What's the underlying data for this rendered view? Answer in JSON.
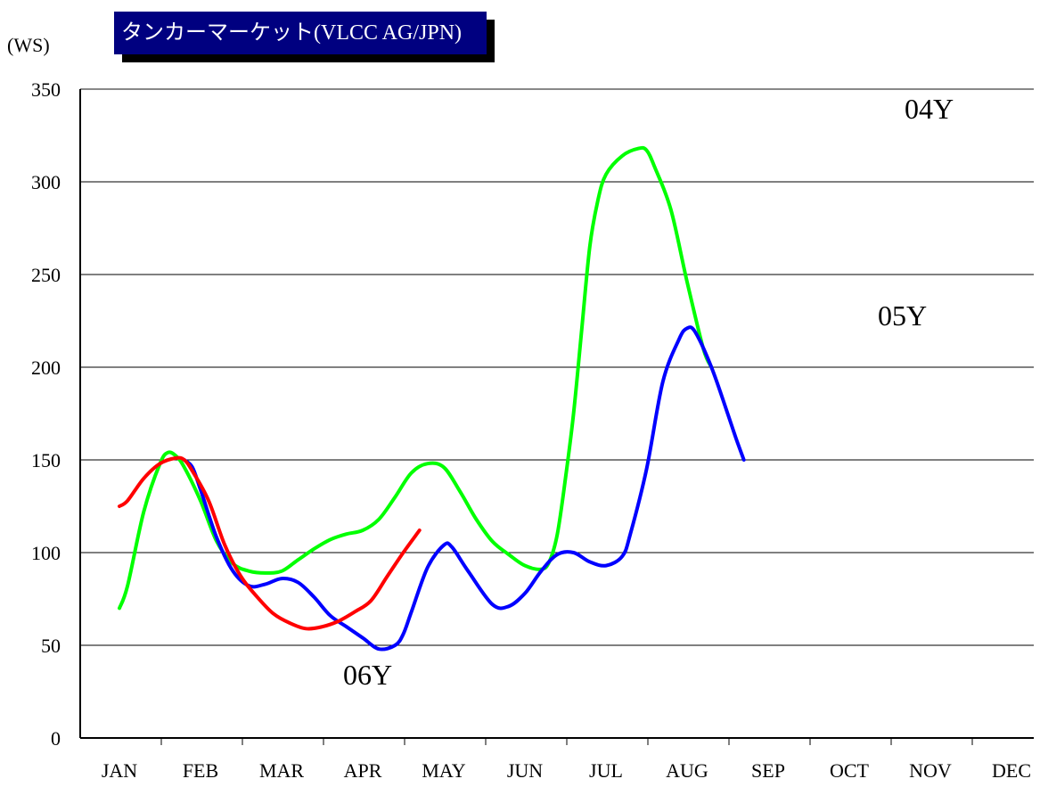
{
  "chart_data": {
    "type": "line",
    "title": "タンカーマーケット(VLCC AG/JPN)",
    "ylabel": "(WS)",
    "xlabel": "",
    "ylim": [
      0,
      350
    ],
    "yticks": [
      0,
      50,
      100,
      150,
      200,
      250,
      300,
      350
    ],
    "categories": [
      "JAN",
      "FEB",
      "MAR",
      "APR",
      "MAY",
      "JUN",
      "JUL",
      "AUG",
      "SEP",
      "OCT",
      "NOV",
      "DEC"
    ],
    "grid": "horizontal",
    "series": [
      {
        "name": "04Y",
        "color": "#00ff00",
        "points": [
          [
            0.0,
            70
          ],
          [
            0.1,
            82
          ],
          [
            0.3,
            122
          ],
          [
            0.5,
            148
          ],
          [
            0.6,
            154
          ],
          [
            0.7,
            152
          ],
          [
            0.8,
            146
          ],
          [
            1.0,
            128
          ],
          [
            1.2,
            106
          ],
          [
            1.4,
            94
          ],
          [
            1.6,
            90
          ],
          [
            1.8,
            89
          ],
          [
            2.0,
            90
          ],
          [
            2.2,
            96
          ],
          [
            2.4,
            102
          ],
          [
            2.6,
            107
          ],
          [
            2.8,
            110
          ],
          [
            3.0,
            112
          ],
          [
            3.2,
            118
          ],
          [
            3.4,
            130
          ],
          [
            3.6,
            143
          ],
          [
            3.8,
            148
          ],
          [
            4.0,
            146
          ],
          [
            4.2,
            133
          ],
          [
            4.4,
            118
          ],
          [
            4.6,
            106
          ],
          [
            4.8,
            99
          ],
          [
            5.0,
            93
          ],
          [
            5.2,
            91
          ],
          [
            5.3,
            95
          ],
          [
            5.4,
            110
          ],
          [
            5.5,
            140
          ],
          [
            5.6,
            175
          ],
          [
            5.7,
            220
          ],
          [
            5.8,
            265
          ],
          [
            5.9,
            290
          ],
          [
            6.0,
            304
          ],
          [
            6.2,
            314
          ],
          [
            6.4,
            318
          ],
          [
            6.5,
            317
          ],
          [
            6.6,
            308
          ],
          [
            6.8,
            285
          ],
          [
            7.0,
            246
          ],
          [
            7.2,
            210
          ],
          [
            7.3,
            200
          ]
        ]
      },
      {
        "name": "05Y",
        "color": "#0000ff",
        "points": [
          [
            0.8,
            150
          ],
          [
            0.9,
            146
          ],
          [
            1.0,
            134
          ],
          [
            1.2,
            108
          ],
          [
            1.4,
            90
          ],
          [
            1.6,
            82
          ],
          [
            1.8,
            83
          ],
          [
            2.0,
            86
          ],
          [
            2.2,
            84
          ],
          [
            2.4,
            76
          ],
          [
            2.6,
            66
          ],
          [
            2.8,
            60
          ],
          [
            3.0,
            54
          ],
          [
            3.2,
            48
          ],
          [
            3.4,
            50
          ],
          [
            3.5,
            56
          ],
          [
            3.6,
            68
          ],
          [
            3.8,
            92
          ],
          [
            4.0,
            104
          ],
          [
            4.1,
            103
          ],
          [
            4.3,
            90
          ],
          [
            4.6,
            72
          ],
          [
            4.8,
            71
          ],
          [
            5.0,
            78
          ],
          [
            5.2,
            90
          ],
          [
            5.4,
            99
          ],
          [
            5.6,
            100
          ],
          [
            5.8,
            95
          ],
          [
            6.0,
            93
          ],
          [
            6.2,
            98
          ],
          [
            6.3,
            110
          ],
          [
            6.5,
            145
          ],
          [
            6.7,
            192
          ],
          [
            6.9,
            215
          ],
          [
            7.0,
            221
          ],
          [
            7.1,
            219
          ],
          [
            7.3,
            200
          ],
          [
            7.5,
            175
          ],
          [
            7.6,
            162
          ],
          [
            7.7,
            150
          ]
        ]
      },
      {
        "name": "06Y",
        "color": "#ff0000",
        "points": [
          [
            0.0,
            125
          ],
          [
            0.1,
            128
          ],
          [
            0.3,
            140
          ],
          [
            0.5,
            148
          ],
          [
            0.7,
            151
          ],
          [
            0.8,
            150
          ],
          [
            0.9,
            144
          ],
          [
            1.1,
            128
          ],
          [
            1.3,
            104
          ],
          [
            1.5,
            87
          ],
          [
            1.7,
            76
          ],
          [
            1.9,
            67
          ],
          [
            2.1,
            62
          ],
          [
            2.3,
            59
          ],
          [
            2.5,
            60
          ],
          [
            2.7,
            63
          ],
          [
            2.9,
            68
          ],
          [
            3.1,
            74
          ],
          [
            3.3,
            87
          ],
          [
            3.5,
            100
          ],
          [
            3.7,
            112
          ]
        ]
      }
    ],
    "annotations": [
      {
        "text": "04Y",
        "series": "04Y"
      },
      {
        "text": "05Y",
        "series": "05Y"
      },
      {
        "text": "06Y",
        "series": "06Y"
      }
    ]
  }
}
